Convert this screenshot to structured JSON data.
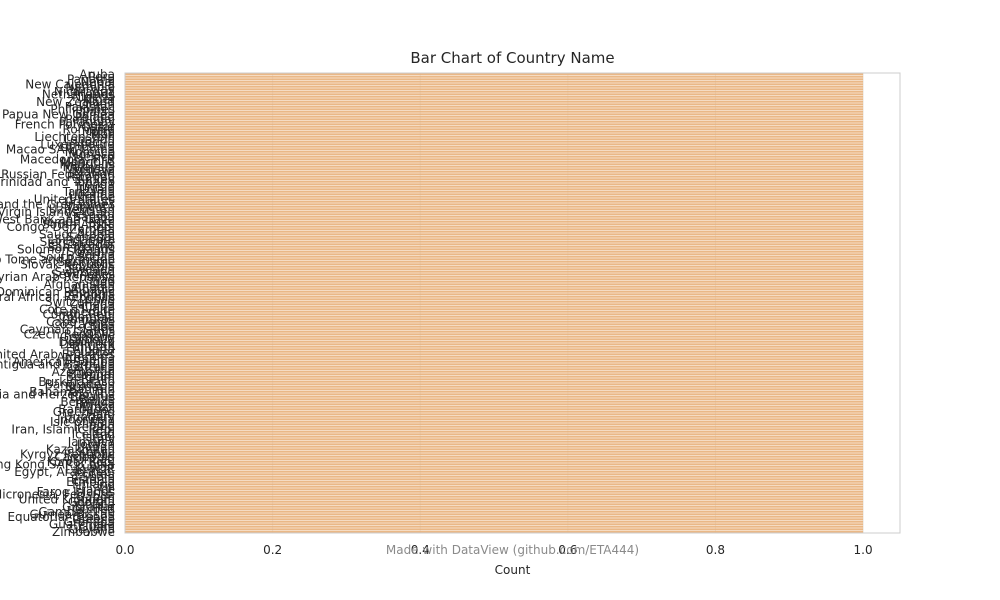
{
  "chart_data": {
    "type": "bar",
    "orientation": "horizontal",
    "title": "Bar Chart of Country Name",
    "xlabel": "Count",
    "ylabel": "",
    "xlim": [
      0,
      1.05
    ],
    "xticks": [
      0.0,
      0.2,
      0.4,
      0.6,
      0.8,
      1.0
    ],
    "xtick_labels": [
      "0.0",
      "0.2",
      "0.4",
      "0.6",
      "0.8",
      "1.0"
    ],
    "grid": true,
    "legend": "none",
    "bar_color": "#e8b07a",
    "categories": [
      "Aruba",
      "Peru",
      "Panama",
      "Nepal",
      "New Caledonia",
      "Namibia",
      "Norway",
      "Nicaragua",
      "Netherlands",
      "Nigeria",
      "Niger",
      "New Zealand",
      "Oman",
      "Pakistan",
      "Philippines",
      "Palau",
      "Papua New Guinea",
      "Poland",
      "Portugal",
      "Paraguay",
      "French Polynesia",
      "Qatar",
      "Romania",
      "Malta",
      "Mali",
      "Liechtenstein",
      "Lebanon",
      "Liberia",
      "Luxembourg",
      "Lithuania",
      "Macao SAR, China",
      "Morocco",
      "Monaco",
      "Mexico",
      "Macedonia, FYR",
      "Mongolia",
      "Mauritius",
      "Malaysia",
      "Moldova",
      "Malawi",
      "Russian Federation",
      "Rwanda",
      "Turkey",
      "Trinidad and Tobago",
      "Tonga",
      "Tunisia",
      "Tuvalu",
      "Tanzania",
      "Uganda",
      "Ukraine",
      "United States",
      "Uruguay",
      "St. Vincent and the Grenadines",
      "Vanuatu",
      "Uzbekistan",
      "Virgin Islands (U.S.)",
      "Vietnam",
      "Samoa",
      "West Bank and Gaza",
      "Yemen, Rep.",
      "South Africa",
      "Congo, Dem. Rep.",
      "Zambia",
      "Sudan",
      "Saudi Arabia",
      "Senegal",
      "Singapore",
      "Sierra Leone",
      "El Salvador",
      "San Marino",
      "Solomon Islands",
      "Somalia",
      "Serbia",
      "South Sudan",
      "Sao Tome and Principe",
      "Suriname",
      "Slovak Republic",
      "Slovenia",
      "Sweden",
      "Swaziland",
      "Seychelles",
      "Syrian Arab Republic",
      "Chad",
      "Togo",
      "Afghanistan",
      "Angola",
      "Albania",
      "Dominican Republic",
      "Andorra",
      "Central African Republic",
      "Chile",
      "Switzerland",
      "Canada",
      "China",
      "Cote d'Ivoire",
      "Cameroon",
      "Congo, Rep.",
      "Colombia",
      "Comoros",
      "Cabo Verde",
      "Costa Rica",
      "Cuba",
      "Cayman Islands",
      "Cyprus",
      "Czech Republic",
      "Germany",
      "Djibouti",
      "Dominica",
      "Denmark",
      "Bhutan",
      "Algeria",
      "Ecuador",
      "United Arab Emirates",
      "Argentina",
      "Armenia",
      "American Samoa",
      "Antigua and Barbuda",
      "Australia",
      "Austria",
      "Azerbaijan",
      "Burundi",
      "Belgium",
      "Benin",
      "Burkina Faso",
      "Bangladesh",
      "Bulgaria",
      "Bahrain",
      "Bahamas, The",
      "Bosnia and Herzegovina",
      "Belarus",
      "Belize",
      "Bermuda",
      "Bolivia",
      "Brazil",
      "Barbados",
      "Greenland",
      "Haiti",
      "Hungary",
      "Indonesia",
      "Isle of Man",
      "India",
      "Ireland",
      "Iran, Islamic Rep.",
      "Iraq",
      "Iceland",
      "Israel",
      "Italy",
      "Jamaica",
      "Jordan",
      "Japan",
      "Kazakhstan",
      "Kenya",
      "Kyrgyz Republic",
      "Cambodia",
      "Kiribati",
      "Korea, Rep.",
      "Hong Kong SAR, China",
      "Kuwait",
      "Lao PDR",
      "Egypt, Arab Rep.",
      "Eritrea",
      "Spain",
      "Estonia",
      "Ethiopia",
      "Finland",
      "Fiji",
      "France",
      "Faroe Islands",
      "Micronesia, Fed. Sts.",
      "Gabon",
      "United Kingdom",
      "Georgia",
      "Ghana",
      "Gibraltar",
      "Guinea",
      "Gambia, The",
      "Guinea-Bissau",
      "Equatorial Guinea",
      "Greece",
      "Grenada",
      "Guatemala",
      "Guam",
      "Guyana",
      "Zimbabwe"
    ],
    "values": [
      1,
      1,
      1,
      1,
      1,
      1,
      1,
      1,
      1,
      1,
      1,
      1,
      1,
      1,
      1,
      1,
      1,
      1,
      1,
      1,
      1,
      1,
      1,
      1,
      1,
      1,
      1,
      1,
      1,
      1,
      1,
      1,
      1,
      1,
      1,
      1,
      1,
      1,
      1,
      1,
      1,
      1,
      1,
      1,
      1,
      1,
      1,
      1,
      1,
      1,
      1,
      1,
      1,
      1,
      1,
      1,
      1,
      1,
      1,
      1,
      1,
      1,
      1,
      1,
      1,
      1,
      1,
      1,
      1,
      1,
      1,
      1,
      1,
      1,
      1,
      1,
      1,
      1,
      1,
      1,
      1,
      1,
      1,
      1,
      1,
      1,
      1,
      1,
      1,
      1,
      1,
      1,
      1,
      1,
      1,
      1,
      1,
      1,
      1,
      1,
      1,
      1,
      1,
      1,
      1,
      1,
      1,
      1,
      1,
      1,
      1,
      1,
      1,
      1,
      1,
      1,
      1,
      1,
      1,
      1,
      1,
      1,
      1,
      1,
      1,
      1,
      1,
      1,
      1,
      1,
      1,
      1,
      1,
      1,
      1,
      1,
      1,
      1,
      1,
      1,
      1,
      1,
      1,
      1,
      1,
      1,
      1,
      1,
      1,
      1,
      1,
      1,
      1,
      1,
      1,
      1,
      1,
      1,
      1,
      1,
      1,
      1,
      1,
      1,
      1,
      1,
      1,
      1,
      1,
      1,
      1,
      1,
      1,
      1,
      1,
      1,
      1,
      1,
      1,
      1,
      1,
      1,
      1,
      1
    ]
  },
  "watermark": "Made with DataView (github.com/ETA444)"
}
